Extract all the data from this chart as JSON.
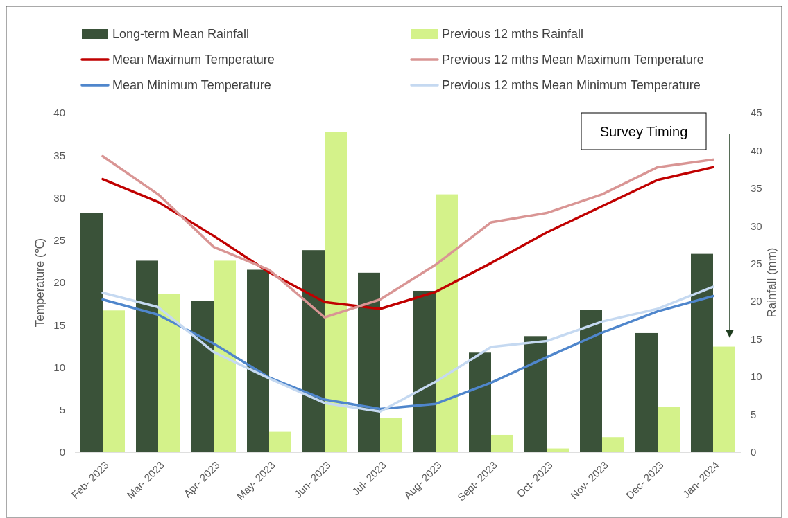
{
  "chart_data": {
    "type": "bar",
    "categories": [
      "Feb- 2023",
      "Mar- 2023",
      "Apr- 2023",
      "May- 2023",
      "Jun- 2023",
      "Jul- 2023",
      "Aug- 2023",
      "Sept- 2023",
      "Oct- 2023",
      "Nov- 2023",
      "Dec- 2023",
      "Jan- 2024"
    ],
    "ylabel": "Temperature (℃)",
    "y2label": "Rainfall (mm)",
    "ylim": [
      0,
      40
    ],
    "yticks": [
      0,
      5,
      10,
      15,
      20,
      25,
      30,
      35,
      40
    ],
    "y2lim": [
      0,
      45
    ],
    "y2ticks": [
      0,
      5,
      10,
      15,
      20,
      25,
      30,
      35,
      40,
      45
    ],
    "legend": "top",
    "grid": false,
    "annotations": [
      "Survey Timing"
    ],
    "series": [
      {
        "name": "Long-term Mean Rainfall",
        "axis": "y2",
        "color": "#3a5239",
        "values": [
          31.7,
          25.4,
          20.1,
          24.2,
          26.8,
          23.8,
          21.4,
          13.2,
          15.4,
          18.9,
          15.8,
          26.3
        ]
      },
      {
        "name": "Previous 12 mths Rainfall",
        "axis": "y2",
        "color": "#d4f28a",
        "values": [
          18.8,
          21.0,
          25.4,
          2.7,
          42.5,
          4.5,
          34.2,
          2.3,
          0.5,
          2.0,
          6.0,
          14.0
        ]
      },
      {
        "name": "Mean Maximum Temperature",
        "type": "line",
        "color": "#c00000",
        "values": [
          32.2,
          29.5,
          25.5,
          21.2,
          17.7,
          16.9,
          18.9,
          22.3,
          25.9,
          29.0,
          32.1,
          33.6
        ]
      },
      {
        "name": "Previous 12 mths Mean Maximum Temperature",
        "type": "line",
        "color": "#d99594",
        "values": [
          34.9,
          30.4,
          24.2,
          21.5,
          15.9,
          18.0,
          22.1,
          27.1,
          28.2,
          30.4,
          33.6,
          34.5
        ]
      },
      {
        "name": "Mean Minimum Temperature",
        "type": "line",
        "color": "#4f86cc",
        "values": [
          18.0,
          16.2,
          12.8,
          8.8,
          6.2,
          5.1,
          5.7,
          8.2,
          11.2,
          14.1,
          16.6,
          18.4
        ]
      },
      {
        "name": "Previous 12 mths Mean Minimum Temperature",
        "type": "line",
        "color": "#c5d9f1",
        "values": [
          18.8,
          17.1,
          11.8,
          8.7,
          5.8,
          4.8,
          8.3,
          12.4,
          13.1,
          15.4,
          16.9,
          19.5
        ]
      }
    ]
  }
}
